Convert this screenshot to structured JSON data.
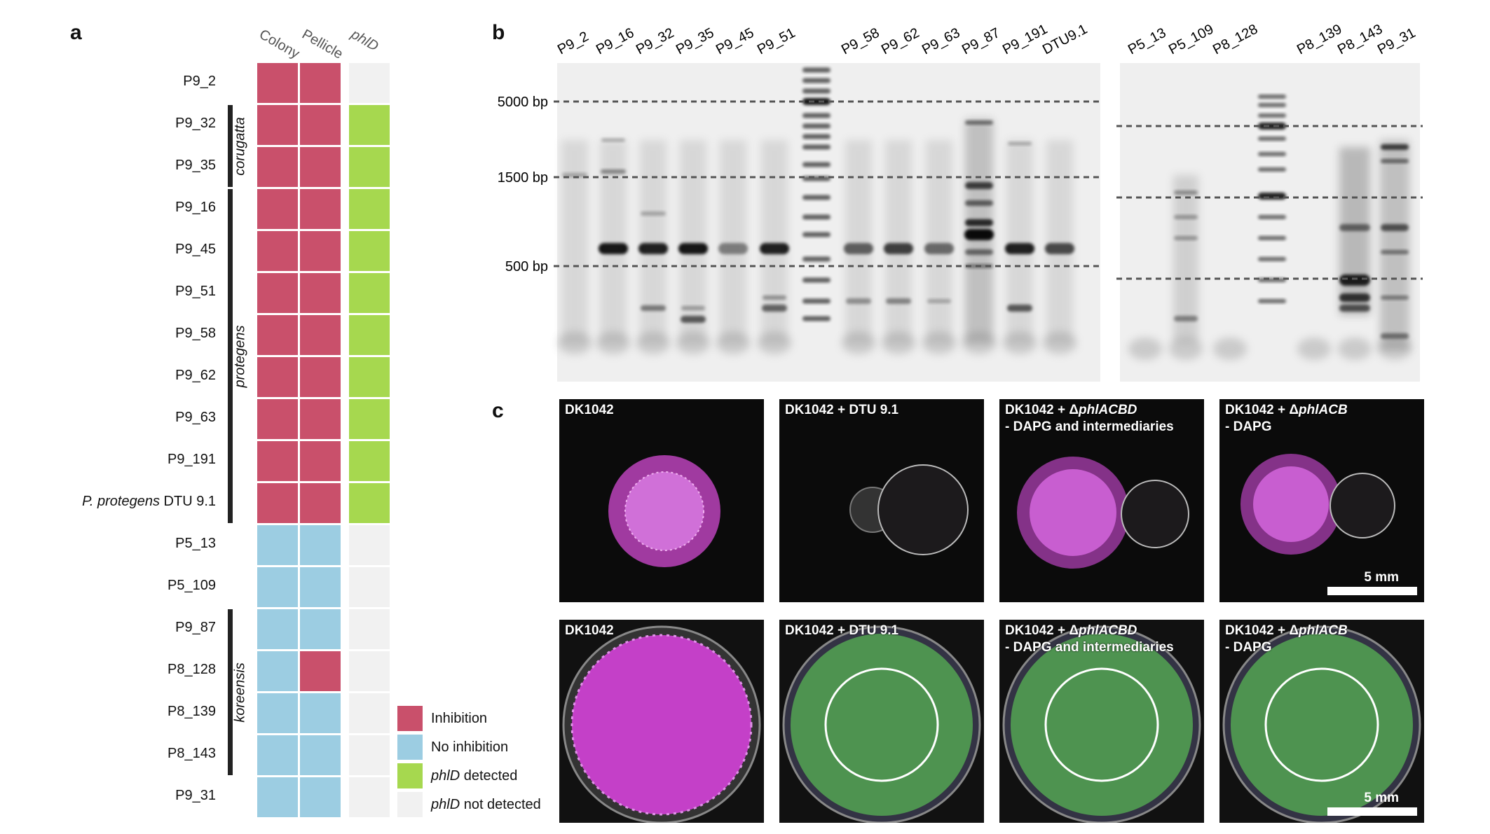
{
  "panels": {
    "a": "a",
    "b": "b",
    "c": "c"
  },
  "panel_a": {
    "columns": [
      "Colony",
      "Pellicle",
      "phlD"
    ],
    "rows": [
      {
        "label": "P9_2",
        "italic_prefix": "",
        "colony": "Inhibition",
        "pellicle": "Inhibition",
        "phlD": "phlD not detected"
      },
      {
        "label": "P9_32",
        "italic_prefix": "",
        "colony": "Inhibition",
        "pellicle": "Inhibition",
        "phlD": "phlD detected"
      },
      {
        "label": "P9_35",
        "italic_prefix": "",
        "colony": "Inhibition",
        "pellicle": "Inhibition",
        "phlD": "phlD detected"
      },
      {
        "label": "P9_16",
        "italic_prefix": "",
        "colony": "Inhibition",
        "pellicle": "Inhibition",
        "phlD": "phlD detected"
      },
      {
        "label": "P9_45",
        "italic_prefix": "",
        "colony": "Inhibition",
        "pellicle": "Inhibition",
        "phlD": "phlD detected"
      },
      {
        "label": "P9_51",
        "italic_prefix": "",
        "colony": "Inhibition",
        "pellicle": "Inhibition",
        "phlD": "phlD detected"
      },
      {
        "label": "P9_58",
        "italic_prefix": "",
        "colony": "Inhibition",
        "pellicle": "Inhibition",
        "phlD": "phlD detected"
      },
      {
        "label": "P9_62",
        "italic_prefix": "",
        "colony": "Inhibition",
        "pellicle": "Inhibition",
        "phlD": "phlD detected"
      },
      {
        "label": "P9_63",
        "italic_prefix": "",
        "colony": "Inhibition",
        "pellicle": "Inhibition",
        "phlD": "phlD detected"
      },
      {
        "label": "P9_191",
        "italic_prefix": "",
        "colony": "Inhibition",
        "pellicle": "Inhibition",
        "phlD": "phlD detected"
      },
      {
        "label": "DTU 9.1",
        "italic_prefix": "P. protegens",
        "colony": "Inhibition",
        "pellicle": "Inhibition",
        "phlD": "phlD detected"
      },
      {
        "label": "P5_13",
        "italic_prefix": "",
        "colony": "No inhibition",
        "pellicle": "No inhibition",
        "phlD": "phlD not detected"
      },
      {
        "label": "P5_109",
        "italic_prefix": "",
        "colony": "No inhibition",
        "pellicle": "No inhibition",
        "phlD": "phlD not detected"
      },
      {
        "label": "P9_87",
        "italic_prefix": "",
        "colony": "No inhibition",
        "pellicle": "No inhibition",
        "phlD": "phlD not detected"
      },
      {
        "label": "P8_128",
        "italic_prefix": "",
        "colony": "No inhibition",
        "pellicle": "Inhibition",
        "phlD": "phlD not detected"
      },
      {
        "label": "P8_139",
        "italic_prefix": "",
        "colony": "No inhibition",
        "pellicle": "No inhibition",
        "phlD": "phlD not detected"
      },
      {
        "label": "P8_143",
        "italic_prefix": "",
        "colony": "No inhibition",
        "pellicle": "No inhibition",
        "phlD": "phlD not detected"
      },
      {
        "label": "P9_31",
        "italic_prefix": "",
        "colony": "No inhibition",
        "pellicle": "No inhibition",
        "phlD": "phlD not detected"
      }
    ],
    "groups": [
      {
        "name": "corugatta",
        "from_row": 1,
        "to_row": 2
      },
      {
        "name": "protegens",
        "from_row": 3,
        "to_row": 10
      },
      {
        "name": "koreensis",
        "from_row": 13,
        "to_row": 16
      }
    ],
    "legend": [
      {
        "label": "Inhibition",
        "italic_word": "",
        "color": "#c9506b"
      },
      {
        "label": "No inhibition",
        "italic_word": "",
        "color": "#9ccde2"
      },
      {
        "label": " detected",
        "italic_word": "phlD",
        "color": "#a6d84f"
      },
      {
        "label": " not detected",
        "italic_word": "phlD",
        "color": "#f1f1f1"
      }
    ],
    "colors": {
      "Inhibition": "#c9506b",
      "No inhibition": "#9ccde2",
      "phlD detected": "#a6d84f",
      "phlD not detected": "#f1f1f1"
    }
  },
  "panel_b": {
    "gel1_lanes": [
      "P9_2",
      "P9_16",
      "P9_32",
      "P9_35",
      "P9_45",
      "P9_51",
      "",
      "P9_58",
      "P9_62",
      "P9_63",
      "P9_87",
      "P9_191",
      "DTU9.1"
    ],
    "gel2_lanes": [
      "P5_13",
      "P5_109",
      "P8_128",
      "",
      "P8_139",
      "P8_143",
      "P9_31"
    ],
    "size_markers": [
      "5000 bp",
      "1500 bp",
      "500 bp"
    ]
  },
  "panel_c": {
    "top_row": [
      {
        "title": "DK1042",
        "italic": "",
        "subtitle": ""
      },
      {
        "title": "DK1042 + DTU 9.1",
        "italic": "",
        "subtitle": ""
      },
      {
        "title": "DK1042 + Δ",
        "italic": "phlACBD",
        "subtitle": "- DAPG and intermediaries"
      },
      {
        "title": "DK1042 + Δ",
        "italic": "phlACB",
        "subtitle": "- DAPG"
      }
    ],
    "bottom_row": [
      {
        "title": "DK1042",
        "italic": "",
        "subtitle": ""
      },
      {
        "title": "DK1042 + DTU 9.1",
        "italic": "",
        "subtitle": ""
      },
      {
        "title": "DK1042 + Δ",
        "italic": "phlACBD",
        "subtitle": "- DAPG and intermediaries"
      },
      {
        "title": "DK1042 + Δ",
        "italic": "phlACB",
        "subtitle": "- DAPG"
      }
    ],
    "scale_bar": "5 mm"
  }
}
